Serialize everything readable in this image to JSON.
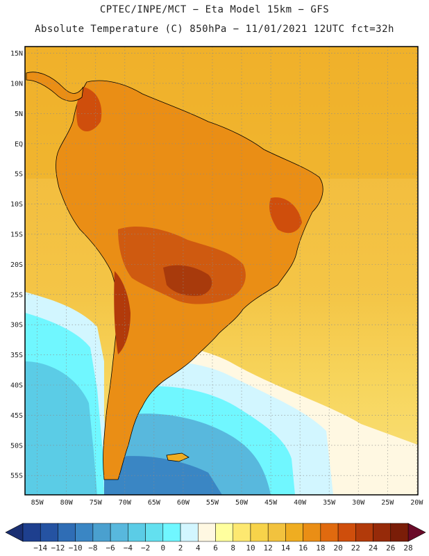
{
  "header": {
    "line1": "CPTEC/INPE/MCT −  Eta Model 15km − GFS",
    "line2": "Absolute Temperature (C) 850hPa − 11/01/2021 12UTC fct=32h"
  },
  "map": {
    "lat_ticks": [
      "15N",
      "10N",
      "5N",
      "EQ",
      "5S",
      "10S",
      "15S",
      "20S",
      "25S",
      "30S",
      "35S",
      "40S",
      "45S",
      "50S",
      "55S"
    ],
    "lon_ticks": [
      "85W",
      "80W",
      "75W",
      "70W",
      "65W",
      "60W",
      "55W",
      "50W",
      "45W",
      "40W",
      "35W",
      "30W",
      "25W",
      "20W"
    ],
    "lat_values": [
      15,
      10,
      5,
      0,
      -5,
      -10,
      -15,
      -20,
      -25,
      -30,
      -35,
      -40,
      -45,
      -50,
      -55
    ],
    "lon_values": [
      -85,
      -80,
      -75,
      -70,
      -65,
      -60,
      -55,
      -50,
      -45,
      -40,
      -35,
      -30,
      -25,
      -20
    ]
  },
  "colorbar": {
    "labels": [
      "−14",
      "−12",
      "−10",
      "−8",
      "−6",
      "−4",
      "−2",
      "0",
      "2",
      "4",
      "6",
      "8",
      "10",
      "12",
      "14",
      "16",
      "18",
      "20",
      "22",
      "24",
      "26",
      "28"
    ],
    "colors": [
      "#1e3f8e",
      "#2553a2",
      "#2f6db5",
      "#3a86c4",
      "#4aa0cf",
      "#58b8dd",
      "#5bcce6",
      "#63e0ef",
      "#70f7ff",
      "#d2f6ff",
      "#fff8e2",
      "#ffff9e",
      "#fde870",
      "#f7d34a",
      "#f2c23e",
      "#efad21",
      "#ea8e15",
      "#e06a0f",
      "#cf4e0c",
      "#b23a0a",
      "#962a09",
      "#7a1d08"
    ],
    "left_color": "#1a2f72",
    "right_color": "#6a0a28"
  },
  "palette": {
    "ocean_warm": "#f0b233",
    "ocean_mid": "#f5cb48",
    "cool": "#58c4dd",
    "cold": "#3d9fcd",
    "land": "#ea8e15",
    "hot": "#cf5a10",
    "hotter": "#a83a0c",
    "coast": "#000000"
  }
}
